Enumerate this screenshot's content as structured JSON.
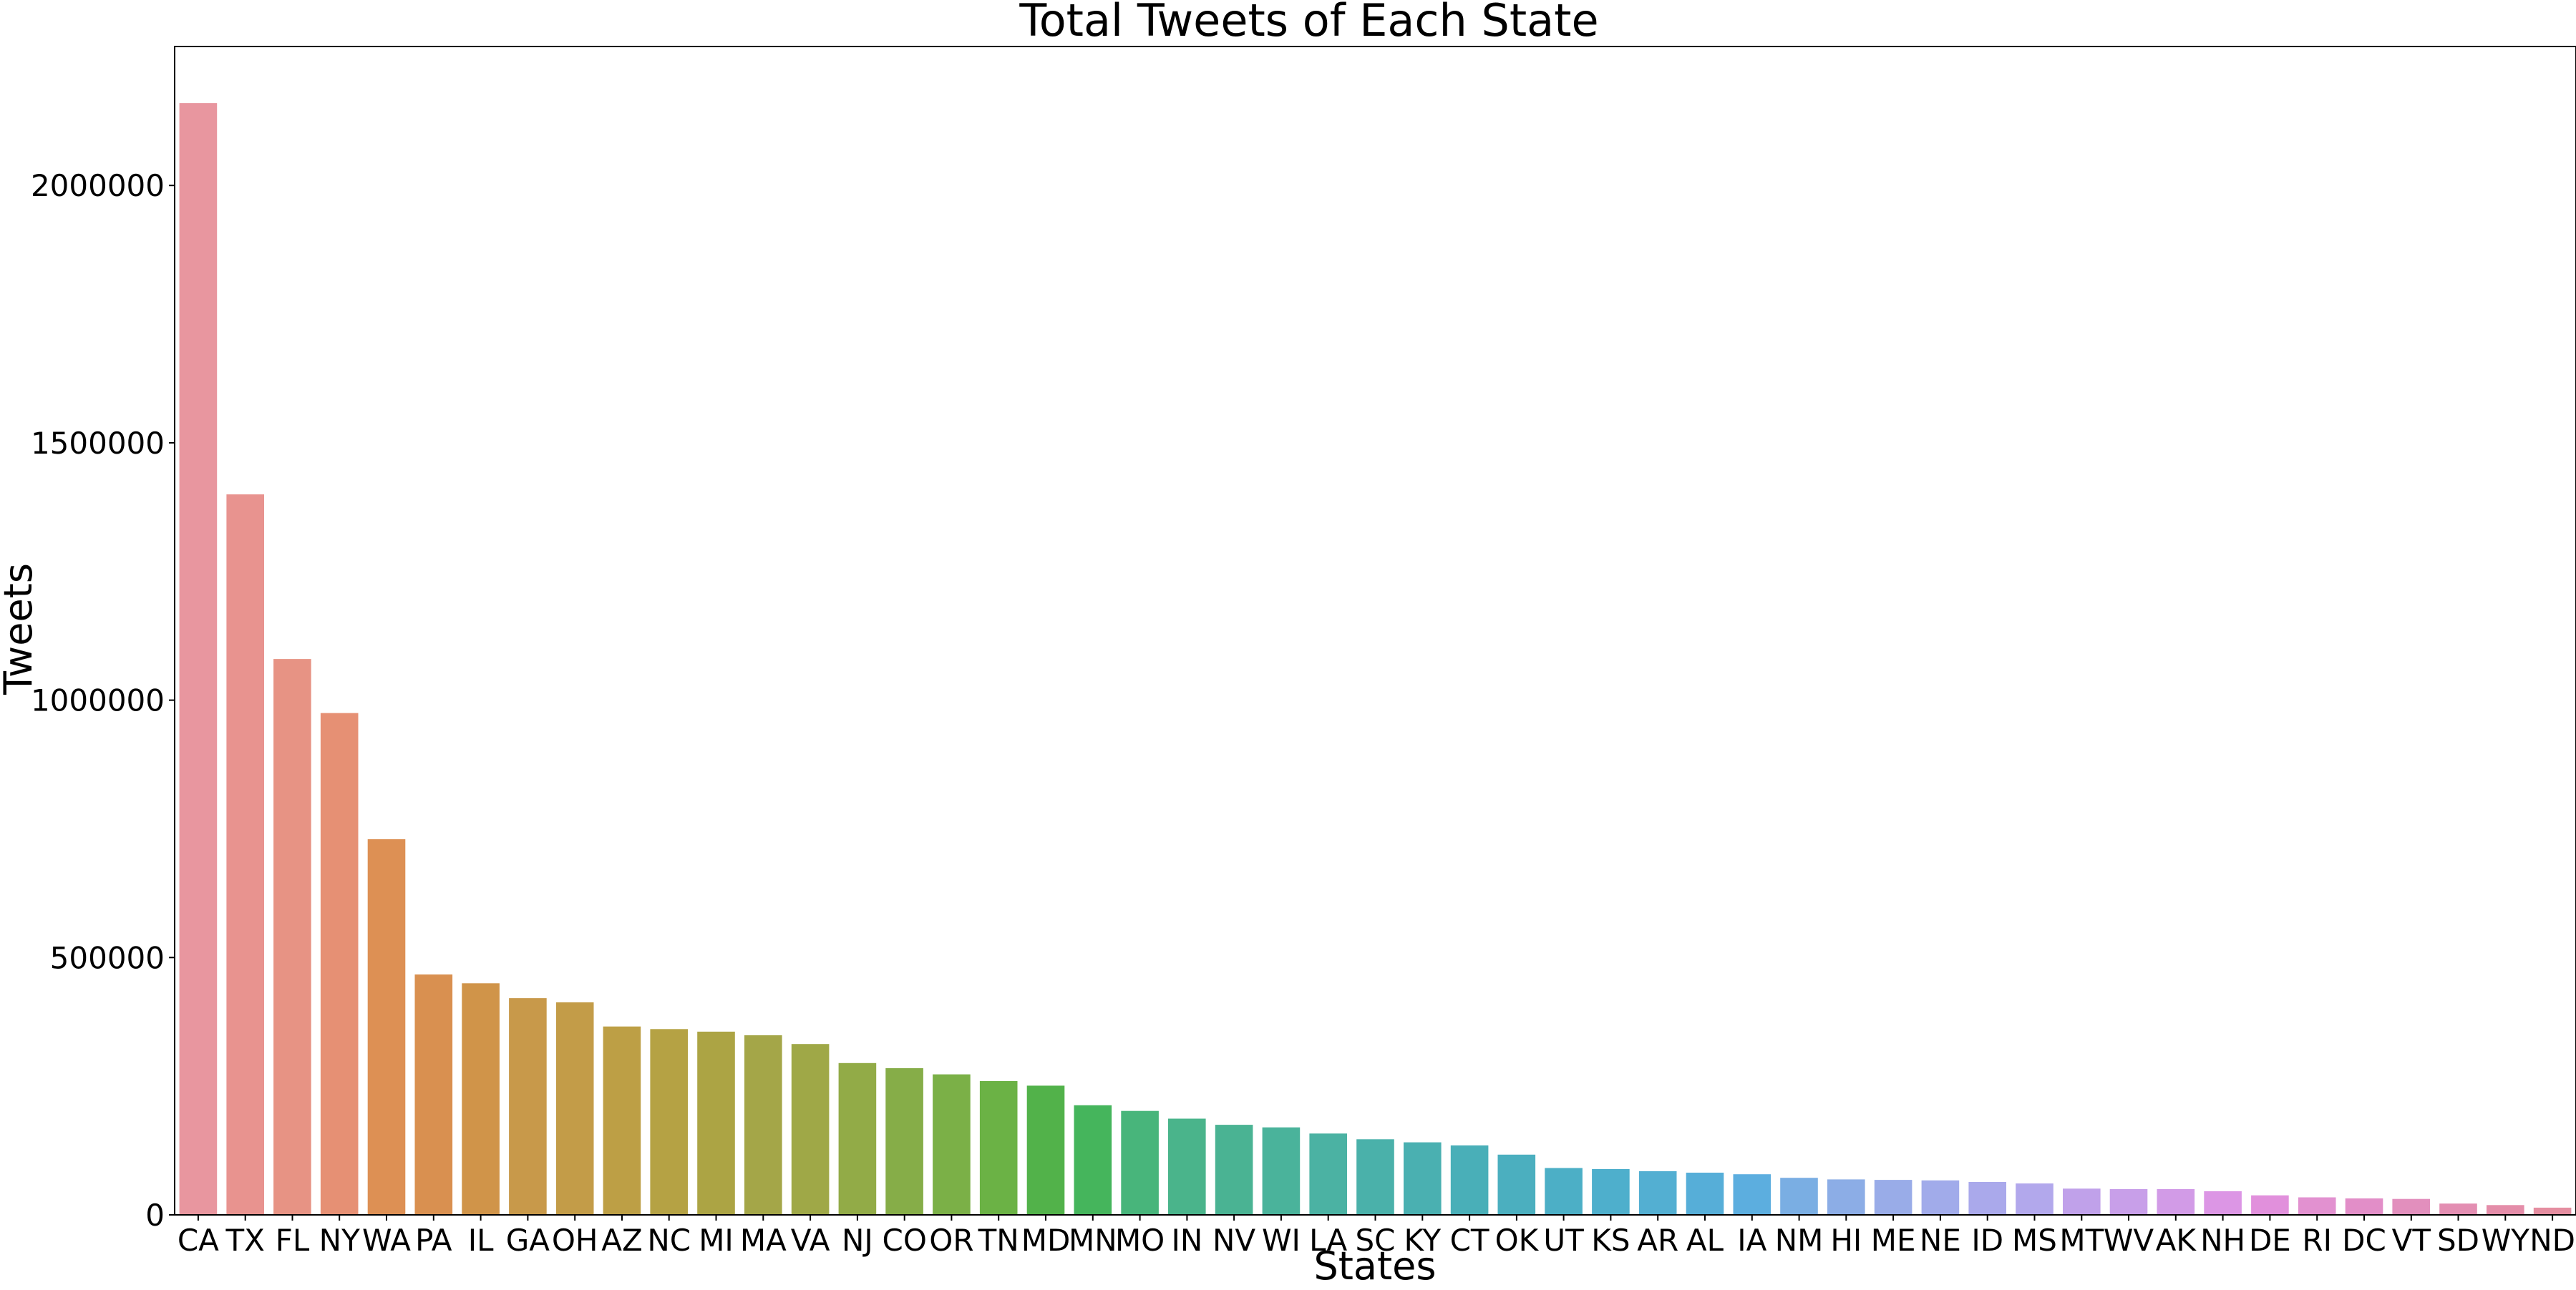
{
  "chart_data": {
    "type": "bar",
    "title": "Total Tweets of Each State",
    "xlabel": "States",
    "ylabel": "Tweets",
    "ylim": [
      0,
      2270000
    ],
    "yticks": [
      0,
      500000,
      1000000,
      1500000,
      2000000
    ],
    "ytick_labels": [
      "0",
      "500000",
      "1000000",
      "1500000",
      "2000000"
    ],
    "grid": false,
    "legend": "none",
    "categories": [
      "CA",
      "TX",
      "FL",
      "NY",
      "WA",
      "PA",
      "IL",
      "GA",
      "OH",
      "AZ",
      "NC",
      "MI",
      "MA",
      "VA",
      "NJ",
      "CO",
      "OR",
      "TN",
      "MD",
      "MN",
      "MO",
      "IN",
      "NV",
      "WI",
      "LA",
      "SC",
      "KY",
      "CT",
      "OK",
      "UT",
      "KS",
      "AR",
      "AL",
      "IA",
      "NM",
      "HI",
      "ME",
      "NE",
      "ID",
      "MS",
      "MT",
      "WV",
      "AK",
      "NH",
      "DE",
      "RI",
      "DC",
      "VT",
      "SD",
      "WY",
      "ND"
    ],
    "values": [
      2160000,
      1400000,
      1080000,
      975000,
      730000,
      467000,
      450000,
      421000,
      413000,
      366000,
      361000,
      356000,
      349000,
      332000,
      295000,
      285000,
      273000,
      260000,
      251000,
      213000,
      202000,
      187000,
      175000,
      170000,
      158000,
      147000,
      141000,
      135000,
      117000,
      91000,
      89000,
      85000,
      82000,
      79000,
      72000,
      69000,
      68000,
      67000,
      64000,
      61000,
      51000,
      50000,
      50000,
      46000,
      38000,
      34000,
      32000,
      31000,
      22000,
      19000,
      14000
    ],
    "colors": [
      "#e8969f",
      "#e8938f",
      "#e79384",
      "#e69074",
      "#dd9054",
      "#d99050",
      "#d09449",
      "#c8994a",
      "#c39c48",
      "#bd9f45",
      "#b5a244",
      "#aca444",
      "#a4a648",
      "#9fa847",
      "#92ab47",
      "#86ad48",
      "#7bb047",
      "#6bb245",
      "#52b24a",
      "#45b55c",
      "#48b57b",
      "#4ab48b",
      "#4ab393",
      "#4ab39b",
      "#4bb2a3",
      "#4ab1aa",
      "#4ab0b1",
      "#49afb8",
      "#4bafbf",
      "#4cafc6",
      "#4eafcc",
      "#53afd2",
      "#56aed8",
      "#5caedf",
      "#7aaee3",
      "#8cade6",
      "#99ace8",
      "#a1abea",
      "#aaa9eb",
      "#b2a8ec",
      "#c0a1ea",
      "#c89fe9",
      "#d29be7",
      "#dc96e5",
      "#e190dc",
      "#e291d0",
      "#e28ec8",
      "#e28fbd",
      "#e38eb2",
      "#e48da9",
      "#e58ea1"
    ]
  }
}
